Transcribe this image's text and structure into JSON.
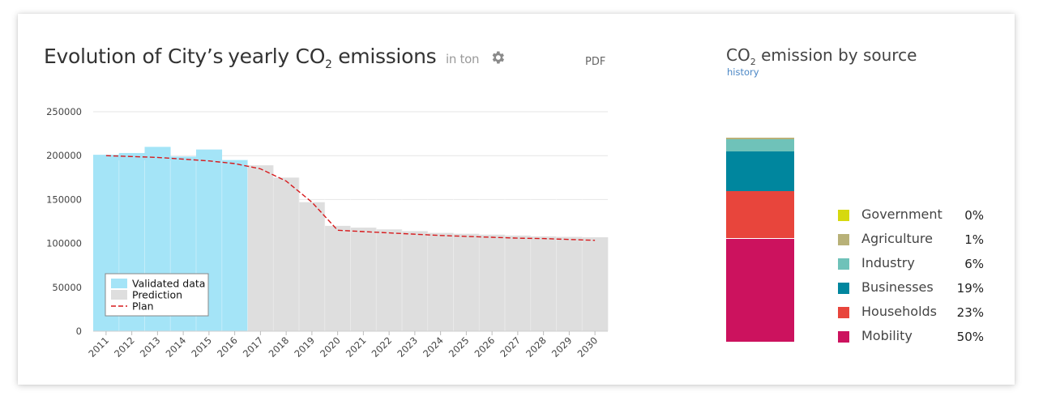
{
  "card": {
    "title": {
      "part1": "Evolution of",
      "city": "City’s",
      "part2": "yearly CO",
      "sub": "2",
      "part3": "emissions",
      "unit": "in ton"
    },
    "pdf_label": "PDF"
  },
  "side": {
    "title_pre": "CO",
    "title_sub": "2",
    "title_post": "emission by source",
    "history_label": "history"
  },
  "chart_data": [
    {
      "type": "bar",
      "title": "",
      "xlabel": "",
      "ylabel": "",
      "ylim": [
        0,
        250000
      ],
      "yticks": [
        0,
        50000,
        100000,
        150000,
        200000,
        250000
      ],
      "grid": true,
      "categories": [
        "2011",
        "2012",
        "2013",
        "2014",
        "2015",
        "2016",
        "2017",
        "2018",
        "2019",
        "2020",
        "2021",
        "2022",
        "2023",
        "2024",
        "2025",
        "2026",
        "2027",
        "2028",
        "2029",
        "2030"
      ],
      "series": [
        {
          "name": "Validated data",
          "color": "#a4e4f7",
          "values": [
            201000,
            203000,
            210000,
            199000,
            207000,
            195000,
            null,
            null,
            null,
            null,
            null,
            null,
            null,
            null,
            null,
            null,
            null,
            null,
            null,
            null
          ]
        },
        {
          "name": "Prediction",
          "color": "#dedede",
          "values": [
            null,
            null,
            null,
            null,
            null,
            null,
            189000,
            175000,
            147000,
            120000,
            118000,
            116000,
            114000,
            112000,
            111000,
            110000,
            109000,
            108000,
            107500,
            107000
          ]
        },
        {
          "name": "Plan",
          "color": "#d7191c",
          "style": "dashed",
          "values": [
            200000,
            199000,
            198000,
            196000,
            194000,
            191000,
            185000,
            171000,
            147000,
            115000,
            113500,
            112000,
            110500,
            109000,
            108000,
            107000,
            106000,
            105500,
            104500,
            103500
          ]
        }
      ],
      "legend": {
        "position": "bottom-left-inside"
      }
    },
    {
      "type": "bar",
      "subtype": "stacked",
      "title": "CO2 emission by source",
      "ylim": [
        0,
        100
      ],
      "categories": [
        "Government",
        "Agriculture",
        "Industry",
        "Businesses",
        "Households",
        "Mobility"
      ],
      "values": [
        0,
        1,
        6,
        19,
        23,
        50
      ],
      "labels": [
        "0%",
        "1%",
        "6%",
        "19%",
        "23%",
        "50%"
      ],
      "colors": [
        "#d6d90e",
        "#b8b178",
        "#6fc2b9",
        "#00869e",
        "#e8453c",
        "#cc125e"
      ]
    }
  ]
}
